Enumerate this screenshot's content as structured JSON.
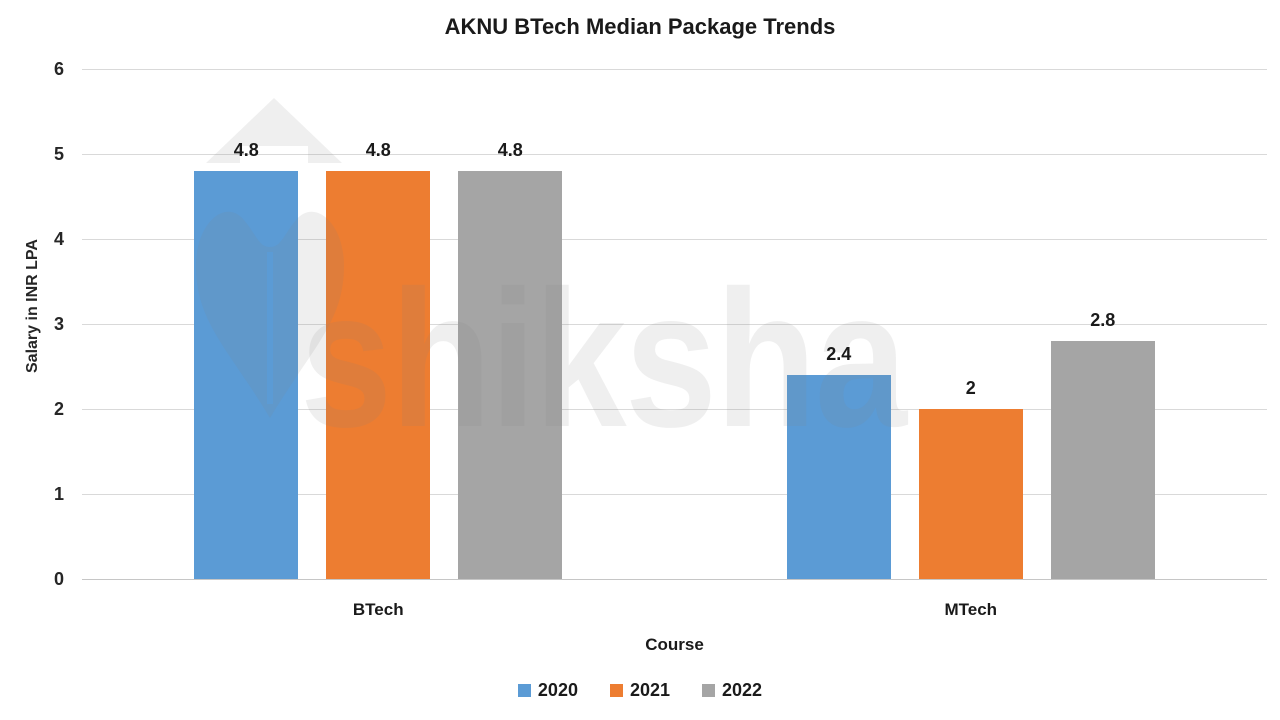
{
  "title": "AKNU BTech Median Package Trends",
  "watermark": {
    "text": "shiksha",
    "logo": "shiksha-pen-arrow-logo"
  },
  "colors": {
    "series_2020": "#5B9BD5",
    "series_2021": "#ED7D31",
    "series_2022": "#A5A5A5",
    "gridline": "#D9D9D9",
    "text": "#1A1A1A"
  },
  "chart_data": {
    "type": "bar",
    "title": "AKNU BTech Median Package Trends",
    "categories": [
      "BTech",
      "MTech"
    ],
    "series": [
      {
        "name": "2020",
        "color": "#5B9BD5",
        "values": [
          4.8,
          2.4
        ],
        "labels": [
          "4.8",
          "2.4"
        ]
      },
      {
        "name": "2021",
        "color": "#ED7D31",
        "values": [
          4.8,
          2.0
        ],
        "labels": [
          "4.8",
          "2"
        ]
      },
      {
        "name": "2022",
        "color": "#A5A5A5",
        "values": [
          4.8,
          2.8
        ],
        "labels": [
          "4.8",
          "2.8"
        ]
      }
    ],
    "xlabel": "Course",
    "ylabel": "Salary in INR LPA",
    "ylim": [
      0,
      6
    ],
    "yticks": [
      0,
      1,
      2,
      3,
      4,
      5,
      6
    ],
    "grid": true,
    "legend_position": "bottom"
  }
}
